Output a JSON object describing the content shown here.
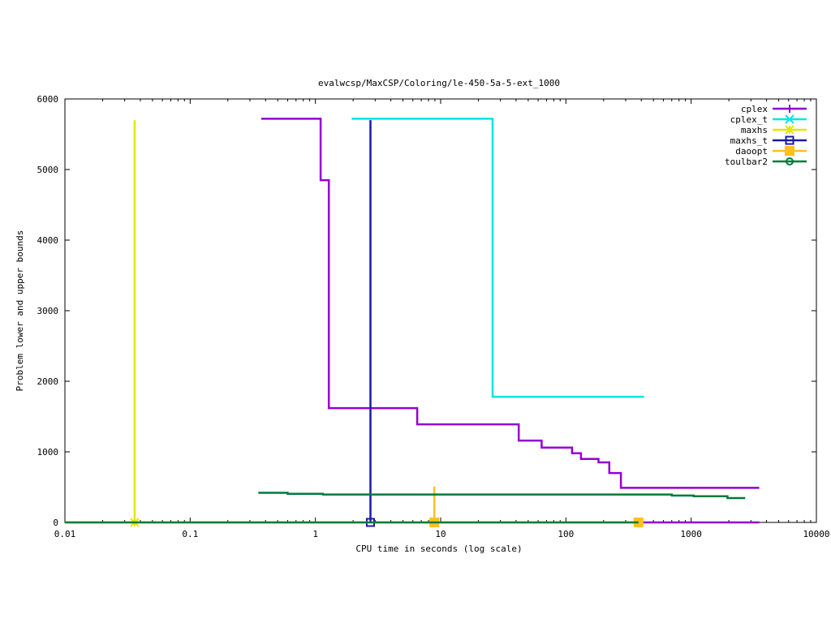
{
  "chart_data": {
    "type": "line",
    "title": "evalwcsp/MaxCSP/Coloring/le-450-5a-5-ext_1000",
    "xlabel": "CPU time in seconds (log scale)",
    "ylabel": "Problem lower and upper bounds",
    "xscale": "log",
    "xlim": [
      0.01,
      10000
    ],
    "ylim": [
      0,
      6000
    ],
    "xticks": [
      {
        "value": 0.01,
        "label": "0.01"
      },
      {
        "value": 0.1,
        "label": "0.1"
      },
      {
        "value": 1,
        "label": "1"
      },
      {
        "value": 10,
        "label": "10"
      },
      {
        "value": 100,
        "label": "100"
      },
      {
        "value": 1000,
        "label": "1000"
      },
      {
        "value": 10000,
        "label": "10000"
      }
    ],
    "yticks": [
      {
        "value": 0,
        "label": "0"
      },
      {
        "value": 1000,
        "label": "1000"
      },
      {
        "value": 2000,
        "label": "2000"
      },
      {
        "value": 3000,
        "label": "3000"
      },
      {
        "value": 4000,
        "label": "4000"
      },
      {
        "value": 5000,
        "label": "5000"
      },
      {
        "value": 6000,
        "label": "6000"
      }
    ],
    "grid": false,
    "legend": "top-right",
    "series": [
      {
        "name": "cplex",
        "color": "#9400d3",
        "marker": "plus",
        "upper": [
          [
            0.37,
            5720
          ],
          [
            1.1,
            5720
          ],
          [
            1.1,
            4850
          ],
          [
            1.28,
            4850
          ],
          [
            1.28,
            1620
          ],
          [
            6.5,
            1620
          ],
          [
            6.5,
            1390
          ],
          [
            42,
            1390
          ],
          [
            42,
            1160
          ],
          [
            64,
            1160
          ],
          [
            64,
            1060
          ],
          [
            112,
            1060
          ],
          [
            112,
            980
          ],
          [
            132,
            980
          ],
          [
            132,
            900
          ],
          [
            182,
            900
          ],
          [
            182,
            850
          ],
          [
            222,
            850
          ],
          [
            222,
            700
          ],
          [
            275,
            700
          ],
          [
            275,
            490
          ],
          [
            3500,
            490
          ]
        ],
        "lower": [
          [
            380,
            0
          ],
          [
            3500,
            0
          ]
        ],
        "markers": []
      },
      {
        "name": "cplex_t",
        "color": "#00e5e5",
        "marker": "cross",
        "upper": [
          [
            1.95,
            5720
          ],
          [
            26,
            5720
          ],
          [
            26,
            1780
          ],
          [
            420,
            1780
          ]
        ],
        "lower": [],
        "markers": []
      },
      {
        "name": "maxhs",
        "color": "#e5e500",
        "marker": "star",
        "upper": [
          [
            0.036,
            5700
          ],
          [
            0.036,
            0
          ]
        ],
        "lower": [],
        "markers": [
          [
            0.036,
            0
          ]
        ]
      },
      {
        "name": "maxhs_t",
        "color": "#1a1aa6",
        "marker": "square",
        "upper": [
          [
            2.75,
            5700
          ],
          [
            2.75,
            0
          ]
        ],
        "lower": [],
        "markers": [
          [
            2.75,
            0
          ]
        ]
      },
      {
        "name": "daoopt",
        "color": "#ffc020",
        "marker": "filled-square",
        "upper": [
          [
            8.9,
            510
          ],
          [
            8.9,
            0
          ]
        ],
        "lower": [
          [
            0.01,
            0
          ],
          [
            380,
            0
          ]
        ],
        "markers": [
          [
            8.9,
            0
          ],
          [
            380,
            0
          ]
        ]
      },
      {
        "name": "toulbar2",
        "color": "#007a3d",
        "marker": "circle",
        "upper": [
          [
            0.35,
            420
          ],
          [
            0.6,
            420
          ],
          [
            0.6,
            405
          ],
          [
            1.15,
            405
          ],
          [
            1.15,
            395
          ],
          [
            700,
            395
          ],
          [
            700,
            380
          ],
          [
            1050,
            380
          ],
          [
            1050,
            370
          ],
          [
            1950,
            370
          ],
          [
            1950,
            345
          ],
          [
            2700,
            345
          ]
        ],
        "lower": [
          [
            0.01,
            0
          ],
          [
            380,
            0
          ]
        ],
        "markers": []
      }
    ]
  }
}
